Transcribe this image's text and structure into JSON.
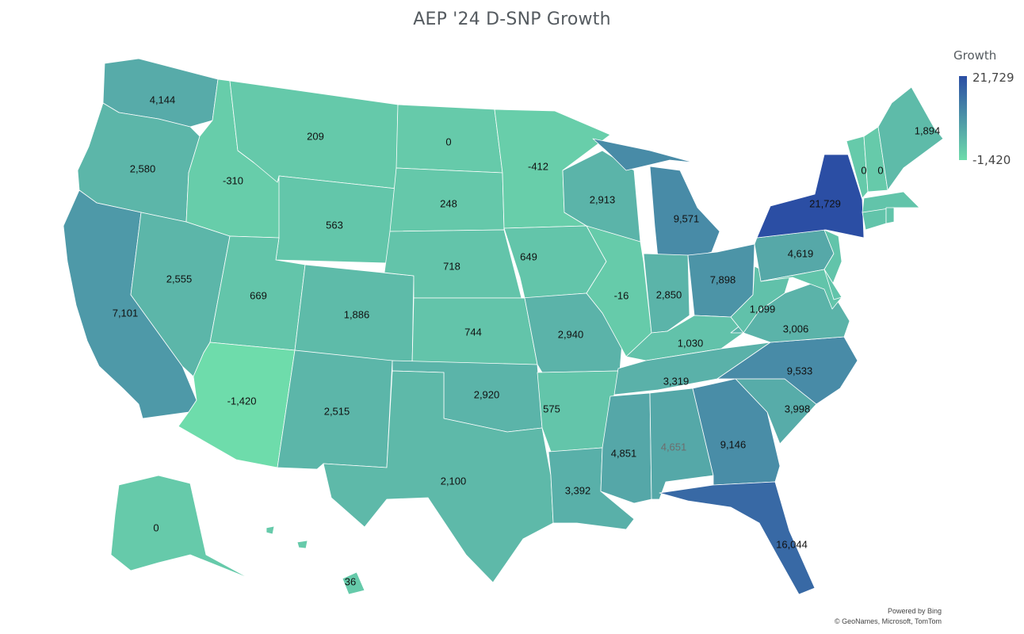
{
  "title": "AEP '24 D-SNP Growth",
  "legend": {
    "title": "Growth",
    "max_label": "21,729",
    "min_label": "-1,420",
    "min_value": -1420,
    "max_value": 21729,
    "color_low": "#6edcab",
    "color_high": "#2b4ea4"
  },
  "attribution": {
    "line1": "Powered by Bing",
    "line2": "© GeoNames, Microsoft, TomTom"
  },
  "states": [
    {
      "id": "WA",
      "value": 4144,
      "label": "4,144"
    },
    {
      "id": "OR",
      "value": 2580,
      "label": "2,580"
    },
    {
      "id": "CA",
      "value": 7101,
      "label": "7,101"
    },
    {
      "id": "ID",
      "value": -310,
      "label": "-310"
    },
    {
      "id": "NV",
      "value": 2555,
      "label": "2,555"
    },
    {
      "id": "MT",
      "value": 209,
      "label": "209"
    },
    {
      "id": "WY",
      "value": 563,
      "label": "563"
    },
    {
      "id": "UT",
      "value": 669,
      "label": "669"
    },
    {
      "id": "AZ",
      "value": -1420,
      "label": "-1,420"
    },
    {
      "id": "CO",
      "value": 1886,
      "label": "1,886"
    },
    {
      "id": "NM",
      "value": 2515,
      "label": "2,515"
    },
    {
      "id": "ND",
      "value": 0,
      "label": "0"
    },
    {
      "id": "SD",
      "value": 248,
      "label": "248"
    },
    {
      "id": "NE",
      "value": 718,
      "label": "718"
    },
    {
      "id": "KS",
      "value": 744,
      "label": "744"
    },
    {
      "id": "OK",
      "value": 2920,
      "label": "2,920"
    },
    {
      "id": "TX",
      "value": 2100,
      "label": "2,100"
    },
    {
      "id": "MN",
      "value": -412,
      "label": "-412"
    },
    {
      "id": "IA",
      "value": 649,
      "label": "649"
    },
    {
      "id": "MO",
      "value": 2940,
      "label": "2,940"
    },
    {
      "id": "AR",
      "value": 575,
      "label": "575"
    },
    {
      "id": "LA",
      "value": 3392,
      "label": "3,392"
    },
    {
      "id": "WI",
      "value": 2913,
      "label": "2,913"
    },
    {
      "id": "IL",
      "value": -16,
      "label": "-16"
    },
    {
      "id": "MI",
      "value": 9571,
      "label": "9,571"
    },
    {
      "id": "IN",
      "value": 2850,
      "label": "2,850"
    },
    {
      "id": "OH",
      "value": 7898,
      "label": "7,898"
    },
    {
      "id": "KY",
      "value": 1030,
      "label": "1,030"
    },
    {
      "id": "TN",
      "value": 3319,
      "label": "3,319"
    },
    {
      "id": "MS",
      "value": 4851,
      "label": "4,851"
    },
    {
      "id": "AL",
      "value": 4651,
      "label": "4,651"
    },
    {
      "id": "GA",
      "value": 9146,
      "label": "9,146"
    },
    {
      "id": "FL",
      "value": 16044,
      "label": "16,044"
    },
    {
      "id": "SC",
      "value": 3998,
      "label": "3,998"
    },
    {
      "id": "NC",
      "value": 9533,
      "label": "9,533"
    },
    {
      "id": "VA",
      "value": 3006,
      "label": "3,006"
    },
    {
      "id": "WV",
      "value": 1099,
      "label": "1,099"
    },
    {
      "id": "PA",
      "value": 4619,
      "label": "4,619"
    },
    {
      "id": "NY",
      "value": 21729,
      "label": "21,729"
    },
    {
      "id": "VT",
      "value": 0,
      "label": "0"
    },
    {
      "id": "NH",
      "value": 0,
      "label": "0"
    },
    {
      "id": "ME",
      "value": 1894,
      "label": "1,894"
    },
    {
      "id": "AK",
      "value": 0,
      "label": "0"
    },
    {
      "id": "HI",
      "value": 36,
      "label": "36"
    },
    {
      "id": "NJ",
      "value": null,
      "label": ""
    },
    {
      "id": "MD",
      "value": null,
      "label": ""
    },
    {
      "id": "DE",
      "value": null,
      "label": ""
    },
    {
      "id": "CT",
      "value": null,
      "label": ""
    },
    {
      "id": "MA",
      "value": null,
      "label": ""
    },
    {
      "id": "RI",
      "value": null,
      "label": ""
    }
  ]
}
